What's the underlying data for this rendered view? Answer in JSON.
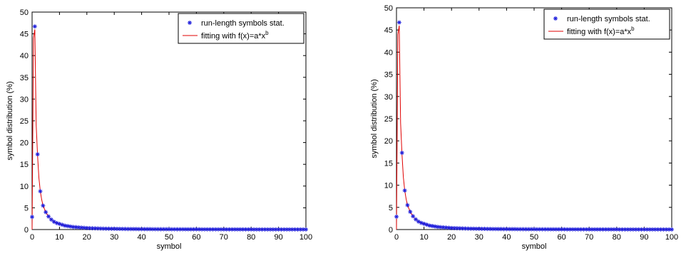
{
  "colors": {
    "marker": "#1f1fdc",
    "fit_line": "#e00000",
    "axis": "#000000",
    "background": "#ffffff"
  },
  "chart_data": [
    {
      "type": "line",
      "xlabel": "symbol",
      "ylabel": "symbol distribution (%)",
      "xlim": [
        0,
        100
      ],
      "ylim": [
        0,
        50
      ],
      "x_ticks": [
        0,
        10,
        20,
        30,
        40,
        50,
        60,
        70,
        80,
        90,
        100
      ],
      "y_ticks": [
        0,
        5,
        10,
        15,
        20,
        25,
        30,
        35,
        40,
        45,
        50
      ],
      "grid": false,
      "legend_position": "top-right",
      "legend": {
        "stat_label": "run-length symbols stat.",
        "fit_label_prefix": "fitting with f(x)=a*x",
        "fit_label_exponent": "b"
      },
      "series": [
        {
          "name": "run-length symbols stat.",
          "style": "markers",
          "x": [
            0,
            1,
            2,
            3,
            4,
            5,
            6,
            7,
            8,
            9,
            10,
            11,
            12,
            13,
            14,
            15,
            16,
            17,
            18,
            19,
            20,
            21,
            22,
            23,
            24,
            25,
            26,
            27,
            28,
            29,
            30,
            31,
            32,
            33,
            34,
            35,
            36,
            37,
            38,
            39,
            40,
            41,
            42,
            43,
            44,
            45,
            46,
            47,
            48,
            49,
            50,
            51,
            52,
            53,
            54,
            55,
            56,
            57,
            58,
            59,
            60,
            61,
            62,
            63,
            64,
            65,
            66,
            67,
            68,
            69,
            70,
            71,
            72,
            73,
            74,
            75,
            76,
            77,
            78,
            79,
            80,
            81,
            82,
            83,
            84,
            85,
            86,
            87,
            88,
            89,
            90,
            91,
            92,
            93,
            94,
            95,
            96,
            97,
            98,
            99,
            100
          ],
          "y": [
            2.9,
            46.7,
            17.3,
            8.8,
            5.5,
            4.0,
            3.0,
            2.3,
            1.8,
            1.5,
            1.3,
            1.1,
            0.9,
            0.8,
            0.7,
            0.6,
            0.55,
            0.5,
            0.45,
            0.4,
            0.35,
            0.32,
            0.3,
            0.28,
            0.26,
            0.24,
            0.22,
            0.21,
            0.2,
            0.19,
            0.18,
            0.17,
            0.16,
            0.15,
            0.14,
            0.13,
            0.13,
            0.12,
            0.12,
            0.11,
            0.11,
            0.1,
            0.1,
            0.1,
            0.09,
            0.09,
            0.09,
            0.08,
            0.08,
            0.08,
            0.08,
            0.07,
            0.07,
            0.07,
            0.07,
            0.07,
            0.06,
            0.06,
            0.06,
            0.06,
            0.06,
            0.06,
            0.05,
            0.05,
            0.05,
            0.05,
            0.05,
            0.05,
            0.05,
            0.05,
            0.04,
            0.04,
            0.04,
            0.04,
            0.04,
            0.04,
            0.04,
            0.04,
            0.04,
            0.04,
            0.04,
            0.03,
            0.03,
            0.03,
            0.03,
            0.03,
            0.03,
            0.03,
            0.03,
            0.03,
            0.03,
            0.03,
            0.03,
            0.03,
            0.03,
            0.03,
            0.03,
            0.03,
            0.03,
            0.03,
            0.03
          ]
        },
        {
          "name": "fitting with f(x)=a*x^b",
          "style": "line",
          "x": [
            0,
            0.5,
            1,
            1.5,
            2,
            2.5,
            3,
            3.5,
            4,
            5,
            6,
            7,
            8,
            9,
            10,
            12,
            14,
            16,
            18,
            20,
            25,
            30,
            35,
            40,
            45,
            50,
            55,
            60,
            65,
            70,
            75,
            80,
            85,
            90,
            95,
            100
          ],
          "y": [
            0,
            44.0,
            46.0,
            24.0,
            17.0,
            11.8,
            8.8,
            6.9,
            5.5,
            4.0,
            3.0,
            2.3,
            1.8,
            1.5,
            1.3,
            0.95,
            0.72,
            0.57,
            0.47,
            0.39,
            0.26,
            0.19,
            0.15,
            0.12,
            0.1,
            0.08,
            0.07,
            0.06,
            0.055,
            0.05,
            0.045,
            0.04,
            0.037,
            0.034,
            0.031,
            0.03
          ]
        }
      ]
    },
    {
      "type": "line",
      "xlabel": "symbol",
      "ylabel": "symbol distribution (%)",
      "xlim": [
        0,
        100
      ],
      "ylim": [
        0,
        50
      ],
      "x_ticks": [
        0,
        10,
        20,
        30,
        40,
        50,
        60,
        70,
        80,
        90,
        100
      ],
      "y_ticks": [
        0,
        5,
        10,
        15,
        20,
        25,
        30,
        35,
        40,
        45,
        50
      ],
      "grid": false,
      "legend_position": "top-right",
      "legend": {
        "stat_label": "run-length symbols stat.",
        "fit_label_prefix": "fitting with f(x)=a*x",
        "fit_label_exponent": "b"
      },
      "series": [
        {
          "name": "run-length symbols stat.",
          "style": "markers",
          "x": [
            0,
            1,
            2,
            3,
            4,
            5,
            6,
            7,
            8,
            9,
            10,
            11,
            12,
            13,
            14,
            15,
            16,
            17,
            18,
            19,
            20,
            21,
            22,
            23,
            24,
            25,
            26,
            27,
            28,
            29,
            30,
            31,
            32,
            33,
            34,
            35,
            36,
            37,
            38,
            39,
            40,
            41,
            42,
            43,
            44,
            45,
            46,
            47,
            48,
            49,
            50,
            51,
            52,
            53,
            54,
            55,
            56,
            57,
            58,
            59,
            60,
            61,
            62,
            63,
            64,
            65,
            66,
            67,
            68,
            69,
            70,
            71,
            72,
            73,
            74,
            75,
            76,
            77,
            78,
            79,
            80,
            81,
            82,
            83,
            84,
            85,
            86,
            87,
            88,
            89,
            90,
            91,
            92,
            93,
            94,
            95,
            96,
            97,
            98,
            99,
            100
          ],
          "y": [
            2.9,
            46.7,
            17.3,
            8.8,
            5.5,
            4.0,
            3.0,
            2.3,
            1.8,
            1.5,
            1.3,
            1.1,
            0.9,
            0.8,
            0.7,
            0.6,
            0.55,
            0.5,
            0.45,
            0.4,
            0.35,
            0.32,
            0.3,
            0.28,
            0.26,
            0.24,
            0.22,
            0.21,
            0.2,
            0.19,
            0.18,
            0.17,
            0.16,
            0.15,
            0.14,
            0.13,
            0.13,
            0.12,
            0.12,
            0.11,
            0.11,
            0.1,
            0.1,
            0.1,
            0.09,
            0.09,
            0.09,
            0.08,
            0.08,
            0.08,
            0.08,
            0.07,
            0.07,
            0.07,
            0.07,
            0.07,
            0.06,
            0.06,
            0.06,
            0.06,
            0.06,
            0.06,
            0.05,
            0.05,
            0.05,
            0.05,
            0.05,
            0.05,
            0.05,
            0.05,
            0.04,
            0.04,
            0.04,
            0.04,
            0.04,
            0.04,
            0.04,
            0.04,
            0.04,
            0.04,
            0.04,
            0.03,
            0.03,
            0.03,
            0.03,
            0.03,
            0.03,
            0.03,
            0.03,
            0.03,
            0.03,
            0.03,
            0.03,
            0.03,
            0.03,
            0.03,
            0.03,
            0.03,
            0.03,
            0.03,
            0.03
          ]
        },
        {
          "name": "fitting with f(x)=a*x^b",
          "style": "line",
          "x": [
            0,
            0.5,
            1,
            1.5,
            2,
            2.5,
            3,
            3.5,
            4,
            5,
            6,
            7,
            8,
            9,
            10,
            12,
            14,
            16,
            18,
            20,
            25,
            30,
            35,
            40,
            45,
            50,
            55,
            60,
            65,
            70,
            75,
            80,
            85,
            90,
            95,
            100
          ],
          "y": [
            0,
            44.0,
            46.0,
            24.0,
            17.0,
            11.8,
            8.8,
            6.9,
            5.5,
            4.0,
            3.0,
            2.3,
            1.8,
            1.5,
            1.3,
            0.95,
            0.72,
            0.57,
            0.47,
            0.39,
            0.26,
            0.19,
            0.15,
            0.12,
            0.1,
            0.08,
            0.07,
            0.06,
            0.055,
            0.05,
            0.045,
            0.04,
            0.037,
            0.034,
            0.031,
            0.03
          ]
        }
      ]
    }
  ]
}
